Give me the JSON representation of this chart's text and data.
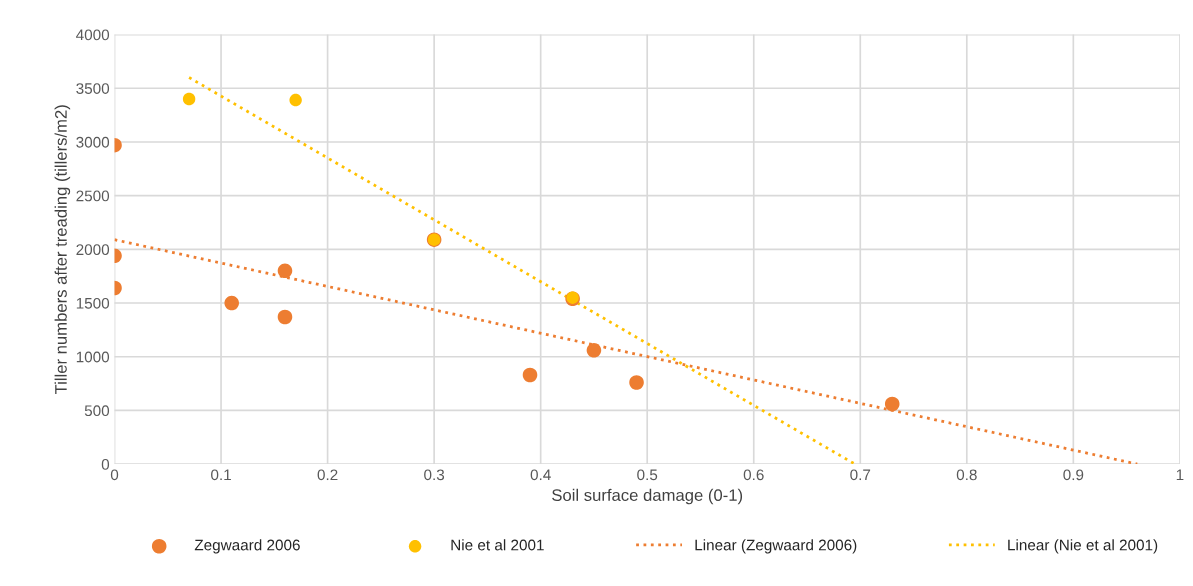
{
  "chart_data": {
    "type": "scatter",
    "xlabel": "Soil surface damage (0-1)",
    "ylabel": "Tiller numbers after treading (tillers/m2)",
    "xlim": [
      0,
      1
    ],
    "xticks": [
      0,
      0.1,
      0.2,
      0.3,
      0.4,
      0.5,
      0.6,
      0.7,
      0.8,
      0.9,
      1
    ],
    "ylim": [
      0,
      4000
    ],
    "yticks": [
      0,
      500,
      1000,
      1500,
      2000,
      2500,
      3000,
      3500,
      4000
    ],
    "grid": true,
    "legend": "bottom",
    "series": [
      {
        "name": "Zegwaard 2006",
        "color": "#ed7d31",
        "marker": "circle",
        "x": [
          0,
          0,
          0,
          0.11,
          0.16,
          0.16,
          0.3,
          0.39,
          0.43,
          0.45,
          0.49,
          0.73
        ],
        "values": [
          2970,
          1940,
          1640,
          1500,
          1800,
          1370,
          2090,
          830,
          1540,
          1060,
          760,
          560
        ]
      },
      {
        "name": "Nie et al 2001",
        "color": "#ffc000",
        "marker": "circle",
        "x": [
          0.07,
          0.17,
          0.3,
          0.43
        ],
        "values": [
          3400,
          3390,
          2090,
          1550
        ]
      },
      {
        "name": "Linear (Zegwaard 2006)",
        "type": "line",
        "line_style": "dotted",
        "marker": "none",
        "color": "#ed7d31",
        "x": [
          0,
          0.96
        ],
        "values": [
          2090,
          0
        ]
      },
      {
        "name": "Linear (Nie et al 2001)",
        "type": "line",
        "line_style": "dotted",
        "marker": "none",
        "color": "#ffc000",
        "x": [
          0.07,
          0.695
        ],
        "values": [
          3600,
          0
        ]
      }
    ]
  }
}
